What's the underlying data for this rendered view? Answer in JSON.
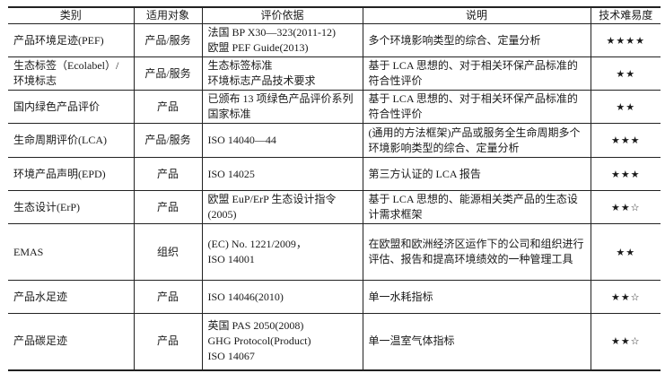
{
  "headers": [
    "类别",
    "适用对象",
    "评价依据",
    "说明",
    "技术难易度"
  ],
  "rows": [
    {
      "category": "产品环境足迹(PEF)",
      "target": "产品/服务",
      "basis": [
        "法国 BP X30—323(2011-12)",
        "欧盟 PEF Guide(2013)"
      ],
      "description": "多个环境影响类型的综合、定量分析",
      "difficulty": "★★★★"
    },
    {
      "category": "生态标签（Ecolabel）/环境标志",
      "target": "产品/服务",
      "basis": [
        "生态标签标准",
        "环境标志产品技术要求"
      ],
      "description": "基于 LCA 思想的、对于相关环保产品标准的符合性评价",
      "difficulty": "★★"
    },
    {
      "category": "国内绿色产品评价",
      "target": "产品",
      "basis": [
        "已颁布 13 项绿色产品评价系列国家标准"
      ],
      "description": "基于 LCA 思想的、对于相关环保产品标准的符合性评价",
      "difficulty": "★★"
    },
    {
      "category": "生命周期评价(LCA)",
      "target": "产品/服务",
      "basis": [
        "ISO 14040—44"
      ],
      "description": "(通用的方法框架)产品或服务全生命周期多个环境影响类型的综合、定量分析",
      "difficulty": "★★★"
    },
    {
      "category": "环境产品声明(EPD)",
      "target": "产品",
      "basis": [
        "ISO 14025"
      ],
      "description": "第三方认证的 LCA 报告",
      "difficulty": "★★★"
    },
    {
      "category": "生态设计(ErP)",
      "target": "产品",
      "basis": [
        "欧盟 EuP/ErP 生态设计指令(2005)"
      ],
      "description": "基于 LCA 思想的、能源相关类产品的生态设计需求框架",
      "difficulty": "★★☆"
    },
    {
      "category": "EMAS",
      "target": "组织",
      "basis": [
        "(EC) No. 1221/2009，",
        "ISO 14001"
      ],
      "description": "在欧盟和欧洲经济区运作下的公司和组织进行评估、报告和提高环境绩效的一种管理工具",
      "difficulty": "★★"
    },
    {
      "category": "产品水足迹",
      "target": "产品",
      "basis": [
        "ISO 14046(2010)"
      ],
      "description": "单一水耗指标",
      "difficulty": "★★☆"
    },
    {
      "category": "产品碳足迹",
      "target": "产品",
      "basis": [
        "英国 PAS 2050(2008)",
        "GHG Protocol(Product)",
        "ISO 14067"
      ],
      "description": "单一温室气体指标",
      "difficulty": "★★☆"
    }
  ]
}
